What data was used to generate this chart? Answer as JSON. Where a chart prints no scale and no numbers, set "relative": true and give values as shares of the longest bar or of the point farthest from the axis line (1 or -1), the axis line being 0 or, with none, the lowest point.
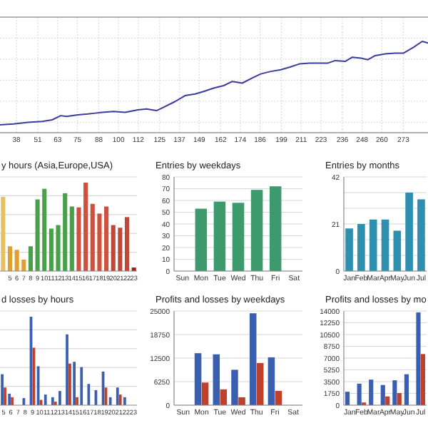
{
  "chart_data": [
    {
      "type": "line",
      "relative": true,
      "grid": true,
      "color": "#3c3c9c",
      "xlim": [
        28,
        288
      ],
      "xticks": [
        38,
        51,
        63,
        75,
        88,
        100,
        112,
        125,
        137,
        149,
        162,
        174,
        186,
        199,
        211,
        223,
        236,
        248,
        260,
        273
      ],
      "x": [
        28,
        36.3,
        45,
        53.6,
        59.7,
        64.9,
        68.4,
        75.3,
        81.4,
        85.8,
        90.1,
        97,
        104,
        111.8,
        117,
        123.1,
        127.4,
        134.4,
        140.4,
        146.5,
        151.7,
        157.8,
        163.9,
        169.1,
        175.2,
        181.2,
        186.4,
        192.5,
        198.6,
        203.8,
        209.9,
        216,
        221.2,
        227.2,
        231.6,
        237.7,
        242,
        247.2,
        251.5,
        255.9,
        262,
        268,
        273.2,
        279.3,
        284.5,
        288
      ],
      "values": [
        0,
        0.01,
        0.03,
        0.04,
        0.06,
        0.11,
        0.1,
        0.12,
        0.13,
        0.14,
        0.15,
        0.16,
        0.15,
        0.18,
        0.19,
        0.17,
        0.21,
        0.28,
        0.35,
        0.37,
        0.4,
        0.44,
        0.47,
        0.52,
        0.5,
        0.56,
        0.61,
        0.64,
        0.66,
        0.69,
        0.73,
        0.74,
        0.74,
        0.74,
        0.77,
        0.76,
        0.81,
        0.8,
        0.78,
        0.83,
        0.85,
        0.86,
        0.86,
        0.93,
        1,
        0.98
      ]
    },
    {
      "type": "bar",
      "relative": true,
      "grid": "y",
      "title": "y hours (Asia,Europe,USA)",
      "categories": [
        null,
        "5",
        "6",
        "7",
        "8",
        "9",
        "10",
        "11",
        "12",
        "13",
        "14",
        "15",
        "16",
        "17",
        "18",
        "19",
        "20",
        "21",
        "22",
        "23"
      ],
      "values": [
        0.84,
        0.28,
        0.24,
        0.13,
        0.28,
        0.81,
        0.93,
        0.48,
        0.52,
        0.88,
        0.73,
        0.72,
        1,
        0.76,
        0.65,
        0.73,
        0.52,
        0.49,
        0.61,
        0.04
      ],
      "colors": [
        "#e8c060",
        "#e0a030",
        "#e0a030",
        "#e0a030",
        "#48a048",
        "#48a048",
        "#48a048",
        "#48a048",
        "#48a048",
        "#48a048",
        "#48a048",
        "#d05040",
        "#d05040",
        "#d05040",
        "#d05040",
        "#d05040",
        "#c04838",
        "#c04838",
        "#c04838",
        "#a02020"
      ]
    },
    {
      "type": "bar",
      "grid": "y",
      "title": "Entries by weekdays",
      "categories": [
        "Sun",
        "Mon",
        "Tue",
        "Wed",
        "Thu",
        "Fri",
        "Sat"
      ],
      "values": [
        0,
        53,
        59,
        58,
        69,
        72,
        0
      ],
      "color": "#3c9a6c",
      "ylim": [
        0,
        80
      ],
      "yticks": [
        0,
        10,
        20,
        30,
        40,
        50,
        60,
        70,
        80
      ]
    },
    {
      "type": "bar",
      "grid": "y",
      "title": "Entries by months",
      "categories": [
        "Jan",
        "Feb",
        "Mar",
        "Apr",
        "May",
        "Jun",
        "Jul"
      ],
      "values": [
        19,
        21,
        23,
        23,
        18,
        35,
        32
      ],
      "color": "#2e8fae",
      "ylim": [
        0,
        42
      ],
      "yticks": [
        0,
        {
          "value": 7,
          "label": null
        },
        {
          "value": 14,
          "label": null
        },
        21,
        {
          "value": 28,
          "label": null
        },
        {
          "value": 35,
          "label": null
        },
        42
      ]
    },
    {
      "type": "bar",
      "relative": true,
      "grid": "y",
      "title": "d losses by hours",
      "categories": [
        "5",
        "6",
        "7",
        "8",
        "9",
        "10",
        "11",
        "12",
        "13",
        "14",
        "15",
        "16",
        "17",
        "18",
        "19",
        "20",
        "21",
        "22",
        "23"
      ],
      "series": [
        {
          "color": "#3a5fb0",
          "values": [
            0.35,
            0.13,
            0,
            0.08,
            1,
            0.44,
            0.12,
            0.09,
            0.16,
            0.8,
            0.49,
            0.43,
            0.24,
            0.17,
            0.38,
            0.09,
            0.2,
            0.09,
            0
          ]
        },
        {
          "color": "#c0402a",
          "values": [
            0.2,
            0.09,
            0,
            0,
            0.65,
            0.06,
            0,
            0.04,
            0,
            0.47,
            0.09,
            0,
            0,
            0,
            0.2,
            0,
            0.12,
            0,
            0
          ]
        }
      ]
    },
    {
      "type": "bar",
      "grid": "y",
      "title": "Profits and losses by weekdays",
      "categories": [
        "Sun",
        "Mon",
        "Tue",
        "Wed",
        "Thu",
        "Fri",
        "Sat"
      ],
      "ylim": [
        0,
        25000
      ],
      "yticks": [
        0,
        6250,
        12500,
        18750,
        25000
      ],
      "series": [
        {
          "color": "#3a5fb0",
          "values": [
            0,
            13800,
            13500,
            9400,
            24400,
            12700,
            0
          ]
        },
        {
          "color": "#c0402a",
          "values": [
            0,
            6000,
            4200,
            2100,
            11200,
            3800,
            0
          ]
        }
      ]
    },
    {
      "type": "bar",
      "grid": "y",
      "title": "Profits and losses by mo",
      "categories": [
        "Jan",
        "Feb",
        "Mar",
        "Apr",
        "May",
        "Jun",
        "Jul"
      ],
      "ylim": [
        0,
        14000
      ],
      "yticks": [
        0,
        1750,
        3500,
        5250,
        7000,
        8750,
        10500,
        12250,
        14000
      ],
      "series": [
        {
          "color": "#3a5fb0",
          "values": [
            2000,
            3200,
            3800,
            3000,
            3700,
            4600,
            13800
          ]
        },
        {
          "color": "#c0402a",
          "values": [
            0,
            400,
            0,
            1300,
            1800,
            0,
            7600
          ]
        }
      ]
    }
  ]
}
